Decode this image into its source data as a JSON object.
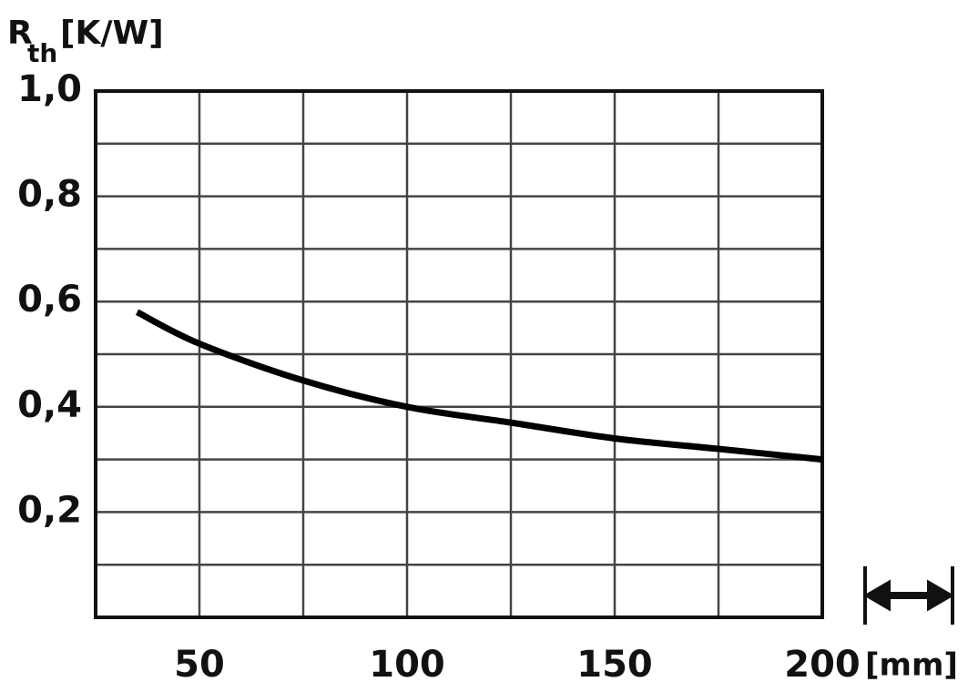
{
  "chart_data": {
    "type": "line",
    "ylabel": {
      "symbol": "R",
      "subscript": "th",
      "unit": "[K/W]"
    },
    "xlabel": "[mm]",
    "x": [
      35,
      50,
      75,
      100,
      125,
      150,
      175,
      200
    ],
    "series": [
      {
        "color": "#000000",
        "values": [
          0.58,
          0.52,
          0.45,
          0.4,
          0.37,
          0.34,
          0.32,
          0.3
        ]
      }
    ],
    "xlim": [
      25,
      200
    ],
    "xticks": [
      50,
      100,
      150,
      200
    ],
    "x_minor_ticks": [
      75,
      125,
      175
    ],
    "ylim": [
      0,
      1.0
    ],
    "yticks": [
      {
        "value": 0.2,
        "label": "0,2"
      },
      {
        "value": 0.4,
        "label": "0,4"
      },
      {
        "value": 0.6,
        "label": "0,6"
      },
      {
        "value": 0.8,
        "label": "0,8"
      },
      {
        "value": 1.0,
        "label": "1,0"
      }
    ],
    "y_minor_ticks": [
      0.1,
      0.3,
      0.5,
      0.7,
      0.9
    ],
    "grid": true
  }
}
